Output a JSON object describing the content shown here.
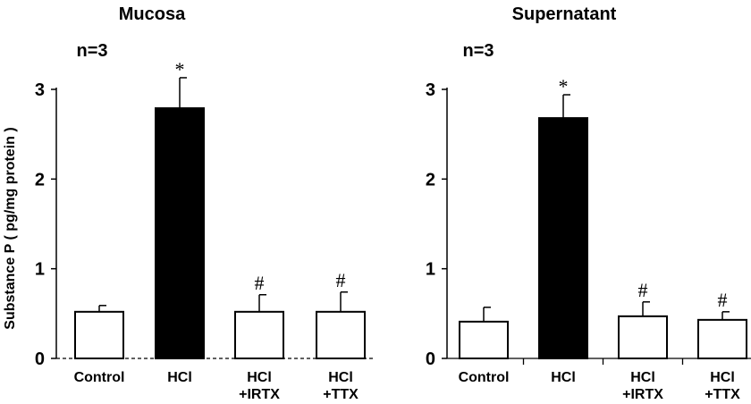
{
  "chart_data": [
    {
      "type": "bar",
      "title": "Mucosa",
      "n_label": "n=3",
      "ylabel": "Substance P ( pg/mg protein )",
      "ylim": [
        0,
        3
      ],
      "yticks": [
        "0",
        "1",
        "2",
        "3"
      ],
      "categories": [
        [
          "Control"
        ],
        [
          "HCl"
        ],
        [
          "HCl",
          "+IRTX"
        ],
        [
          "HCl",
          "+TTX"
        ]
      ],
      "values": [
        0.52,
        2.79,
        0.52,
        0.52
      ],
      "errors": [
        0.07,
        0.34,
        0.19,
        0.22
      ],
      "fills": [
        "#ffffff",
        "#000000",
        "#ffffff",
        "#ffffff"
      ],
      "annotations": [
        "",
        "*",
        "#",
        "#"
      ],
      "baseline": "dashed"
    },
    {
      "type": "bar",
      "title": "Supernatant",
      "n_label": "n=3",
      "ylabel": "",
      "ylim": [
        0,
        3
      ],
      "yticks": [
        "0",
        "1",
        "2",
        "3"
      ],
      "categories": [
        [
          "Control"
        ],
        [
          "HCl"
        ],
        [
          "HCl",
          "+IRTX"
        ],
        [
          "HCl",
          "+TTX"
        ]
      ],
      "values": [
        0.41,
        2.68,
        0.47,
        0.43
      ],
      "errors": [
        0.16,
        0.26,
        0.16,
        0.09
      ],
      "fills": [
        "#ffffff",
        "#000000",
        "#ffffff",
        "#ffffff"
      ],
      "annotations": [
        "",
        "*",
        "#",
        "#"
      ],
      "baseline": "solid"
    }
  ]
}
